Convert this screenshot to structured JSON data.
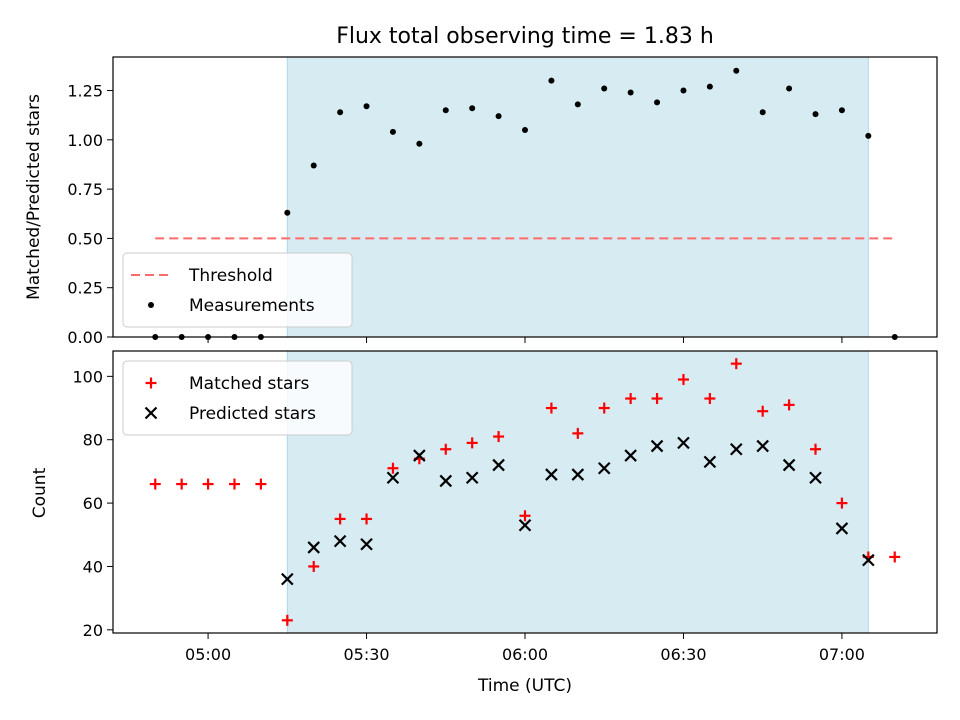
{
  "chart_data": [
    {
      "type": "scatter",
      "title": "Flux total observing time = 1.83 h",
      "ylabel": "Matched/Predicted stars",
      "ylim": [
        0,
        1.42
      ],
      "yticks": [
        "0.00",
        "0.25",
        "0.50",
        "0.75",
        "1.00",
        "1.25"
      ],
      "shaded_interval": {
        "start": "05:15",
        "end": "07:05",
        "color": "#add8e6"
      },
      "legend_position": "lower-left",
      "threshold": {
        "name": "Threshold",
        "value": 0.5,
        "x_start": "04:50",
        "x_end": "07:10",
        "color": "#ff6b6b",
        "style": "dashed"
      },
      "series": [
        {
          "name": "Measurements",
          "color": "#000000",
          "marker": "dot",
          "x": [
            "04:50",
            "04:55",
            "05:00",
            "05:05",
            "05:10",
            "05:15",
            "05:20",
            "05:25",
            "05:30",
            "05:35",
            "05:40",
            "05:45",
            "05:50",
            "05:55",
            "06:00",
            "06:05",
            "06:10",
            "06:15",
            "06:20",
            "06:25",
            "06:30",
            "06:35",
            "06:40",
            "06:45",
            "06:50",
            "06:55",
            "07:00",
            "07:05",
            "07:10"
          ],
          "y": [
            0,
            0,
            0,
            0,
            0,
            0.63,
            0.87,
            1.14,
            1.17,
            1.04,
            0.98,
            1.15,
            1.16,
            1.12,
            1.05,
            1.3,
            1.18,
            1.26,
            1.24,
            1.19,
            1.25,
            1.27,
            1.35,
            1.14,
            1.26,
            1.13,
            1.15,
            1.02,
            0
          ]
        }
      ]
    },
    {
      "type": "scatter",
      "xlabel": "Time (UTC)",
      "ylabel": "Count",
      "ylim": [
        19,
        108
      ],
      "yticks": [
        "20",
        "40",
        "60",
        "80",
        "100"
      ],
      "xticks": [
        "05:00",
        "05:30",
        "06:00",
        "06:30",
        "07:00"
      ],
      "xlim": [
        "04:42",
        "07:18"
      ],
      "shaded_interval": {
        "start": "05:15",
        "end": "07:05",
        "color": "#add8e6"
      },
      "legend_position": "upper-left",
      "series": [
        {
          "name": "Matched stars",
          "color": "#ff0000",
          "marker": "plus",
          "x": [
            "04:50",
            "04:55",
            "05:00",
            "05:05",
            "05:10",
            "05:15",
            "05:20",
            "05:25",
            "05:30",
            "05:35",
            "05:40",
            "05:45",
            "05:50",
            "05:55",
            "06:00",
            "06:05",
            "06:10",
            "06:15",
            "06:20",
            "06:25",
            "06:30",
            "06:35",
            "06:40",
            "06:45",
            "06:50",
            "06:55",
            "07:00",
            "07:05",
            "07:10"
          ],
          "y": [
            66,
            66,
            66,
            66,
            66,
            23,
            40,
            55,
            55,
            71,
            74,
            77,
            79,
            81,
            56,
            90,
            82,
            90,
            93,
            93,
            99,
            93,
            104,
            89,
            91,
            77,
            60,
            43,
            43
          ]
        },
        {
          "name": "Predicted stars",
          "color": "#000000",
          "marker": "x",
          "x": [
            "05:15",
            "05:20",
            "05:25",
            "05:30",
            "05:35",
            "05:40",
            "05:45",
            "05:50",
            "05:55",
            "06:00",
            "06:05",
            "06:10",
            "06:15",
            "06:20",
            "06:25",
            "06:30",
            "06:35",
            "06:40",
            "06:45",
            "06:50",
            "06:55",
            "07:00",
            "07:05"
          ],
          "y": [
            36,
            46,
            48,
            47,
            68,
            75,
            67,
            68,
            72,
            53,
            69,
            69,
            71,
            75,
            78,
            79,
            73,
            77,
            78,
            72,
            68,
            52,
            42
          ]
        }
      ]
    }
  ]
}
